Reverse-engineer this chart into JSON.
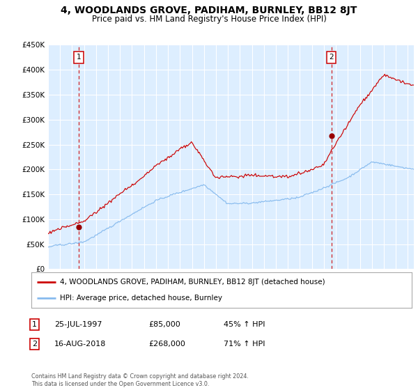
{
  "title": "4, WOODLANDS GROVE, PADIHAM, BURNLEY, BB12 8JT",
  "subtitle": "Price paid vs. HM Land Registry's House Price Index (HPI)",
  "legend_line1": "4, WOODLANDS GROVE, PADIHAM, BURNLEY, BB12 8JT (detached house)",
  "legend_line2": "HPI: Average price, detached house, Burnley",
  "sale1_label": "1",
  "sale1_date": "25-JUL-1997",
  "sale1_price": "£85,000",
  "sale1_hpi": "45% ↑ HPI",
  "sale1_year": 1997.56,
  "sale1_value": 85000,
  "sale2_label": "2",
  "sale2_date": "16-AUG-2018",
  "sale2_price": "£268,000",
  "sale2_hpi": "71% ↑ HPI",
  "sale2_year": 2018.62,
  "sale2_value": 268000,
  "hpi_color": "#88bbee",
  "property_color": "#cc0000",
  "marker_color": "#990000",
  "dashed_color": "#cc0000",
  "ylim_min": 0,
  "ylim_max": 450000,
  "xlim_start": 1995.0,
  "xlim_end": 2025.5,
  "plot_bg": "#ddeeff",
  "footer": "Contains HM Land Registry data © Crown copyright and database right 2024.\nThis data is licensed under the Open Government Licence v3.0."
}
